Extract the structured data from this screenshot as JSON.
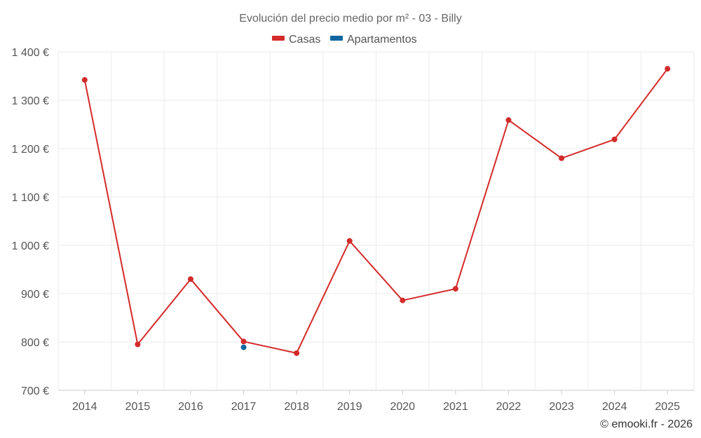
{
  "chart_data": {
    "type": "line",
    "title": "Evolución del precio medio por m² - 03 - Billy",
    "categories": [
      "2014",
      "2015",
      "2016",
      "2017",
      "2018",
      "2019",
      "2020",
      "2021",
      "2022",
      "2023",
      "2024",
      "2025"
    ],
    "series": [
      {
        "name": "Casas",
        "color": "#d42a2a",
        "values": [
          1342,
          795,
          930,
          801,
          777,
          1009,
          886,
          910,
          1259,
          1180,
          1219,
          1365
        ]
      },
      {
        "name": "Apartamentos",
        "color": "#0f66a0",
        "values": [
          null,
          null,
          null,
          789,
          null,
          null,
          null,
          null,
          null,
          null,
          null,
          null
        ]
      }
    ],
    "yticks": [
      700,
      800,
      900,
      1000,
      1100,
      1200,
      1300,
      1400
    ],
    "ytick_labels": [
      "700 €",
      "800 €",
      "900 €",
      "1 000 €",
      "1 100 €",
      "1 200 €",
      "1 300 €",
      "1 400 €"
    ],
    "ylim": [
      700,
      1400
    ],
    "xlabel": "",
    "ylabel": "",
    "grid": true,
    "legend_position": "top-center"
  },
  "credit": "© emooki.fr - 2026"
}
